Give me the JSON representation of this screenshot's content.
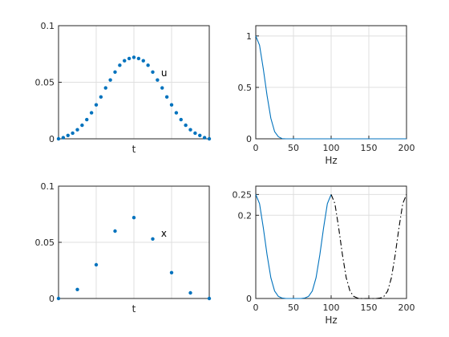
{
  "colors": {
    "series": "#0072bd",
    "axis": "#262626",
    "grid": "#dfdfdf",
    "dashed": "#000000"
  },
  "chart_data": [
    {
      "type": "scatter",
      "annotation": "u",
      "xlabel": "t",
      "x": [
        0,
        1,
        2,
        3,
        4,
        5,
        6,
        7,
        8,
        9,
        10,
        11,
        12,
        13,
        14,
        15,
        16,
        17,
        18,
        19,
        20,
        21,
        22,
        23,
        24,
        25,
        26,
        27,
        28,
        29,
        30,
        31,
        32
      ],
      "xlim": [
        0,
        32
      ],
      "y": [
        0.0,
        0.001,
        0.003,
        0.005,
        0.008,
        0.012,
        0.017,
        0.023,
        0.03,
        0.037,
        0.045,
        0.052,
        0.059,
        0.065,
        0.069,
        0.071,
        0.072,
        0.071,
        0.069,
        0.065,
        0.059,
        0.052,
        0.045,
        0.037,
        0.03,
        0.023,
        0.017,
        0.012,
        0.008,
        0.005,
        0.003,
        0.001,
        0.0
      ],
      "ylim": [
        0,
        0.1
      ],
      "yticks": [
        0,
        0.05,
        0.1
      ],
      "ytick_labels": [
        "0",
        "0.05",
        "0.1"
      ],
      "grid": true
    },
    {
      "type": "line",
      "xlabel": "Hz",
      "x": [
        0,
        5,
        10,
        15,
        20,
        25,
        30,
        35,
        40,
        200
      ],
      "y": [
        1.0,
        0.91,
        0.68,
        0.42,
        0.2,
        0.07,
        0.02,
        0.002,
        0,
        0
      ],
      "xlim": [
        0,
        200
      ],
      "ylim": [
        0,
        1.1
      ],
      "xticks": [
        0,
        50,
        100,
        150,
        200
      ],
      "xtick_labels": [
        "0",
        "50",
        "100",
        "150",
        "200"
      ],
      "yticks": [
        0,
        0.5,
        1
      ],
      "ytick_labels": [
        "0",
        "0.5",
        "1"
      ],
      "grid": true
    },
    {
      "type": "scatter",
      "annotation": "x",
      "xlabel": "t",
      "x": [
        0,
        4,
        8,
        12,
        16,
        20,
        24,
        28,
        32
      ],
      "xlim": [
        0,
        32
      ],
      "y": [
        0.0,
        0.008,
        0.03,
        0.06,
        0.072,
        0.053,
        0.023,
        0.005,
        0.0
      ],
      "ylim": [
        0,
        0.1
      ],
      "yticks": [
        0,
        0.05,
        0.1
      ],
      "ytick_labels": [
        "0",
        "0.05",
        "0.1"
      ],
      "grid": true
    },
    {
      "type": "line",
      "xlabel": "Hz",
      "series": [
        {
          "style": "solid",
          "x": [
            0,
            5,
            10,
            15,
            20,
            25,
            30,
            35,
            40,
            60,
            65,
            70,
            75,
            80,
            85,
            90,
            95,
            100
          ],
          "y": [
            0.25,
            0.228,
            0.17,
            0.105,
            0.05,
            0.018,
            0.005,
            0.001,
            0,
            0,
            0.001,
            0.005,
            0.018,
            0.05,
            0.105,
            0.17,
            0.228,
            0.25
          ]
        },
        {
          "style": "dash-dot",
          "x": [
            100,
            105,
            110,
            115,
            120,
            125,
            130,
            135,
            140,
            160,
            165,
            170,
            175,
            180,
            185,
            190,
            195,
            200
          ],
          "y": [
            0.25,
            0.228,
            0.17,
            0.105,
            0.05,
            0.018,
            0.005,
            0.001,
            0,
            0,
            0.001,
            0.005,
            0.018,
            0.05,
            0.105,
            0.17,
            0.228,
            0.25
          ]
        }
      ],
      "xlim": [
        0,
        200
      ],
      "ylim": [
        0,
        0.27
      ],
      "xticks": [
        0,
        50,
        100,
        150,
        200
      ],
      "xtick_labels": [
        "0",
        "50",
        "100",
        "150",
        "200"
      ],
      "yticks": [
        0,
        0.2,
        0.25
      ],
      "ytick_labels": [
        "0",
        "0.2",
        "0.25"
      ],
      "grid": true
    }
  ]
}
